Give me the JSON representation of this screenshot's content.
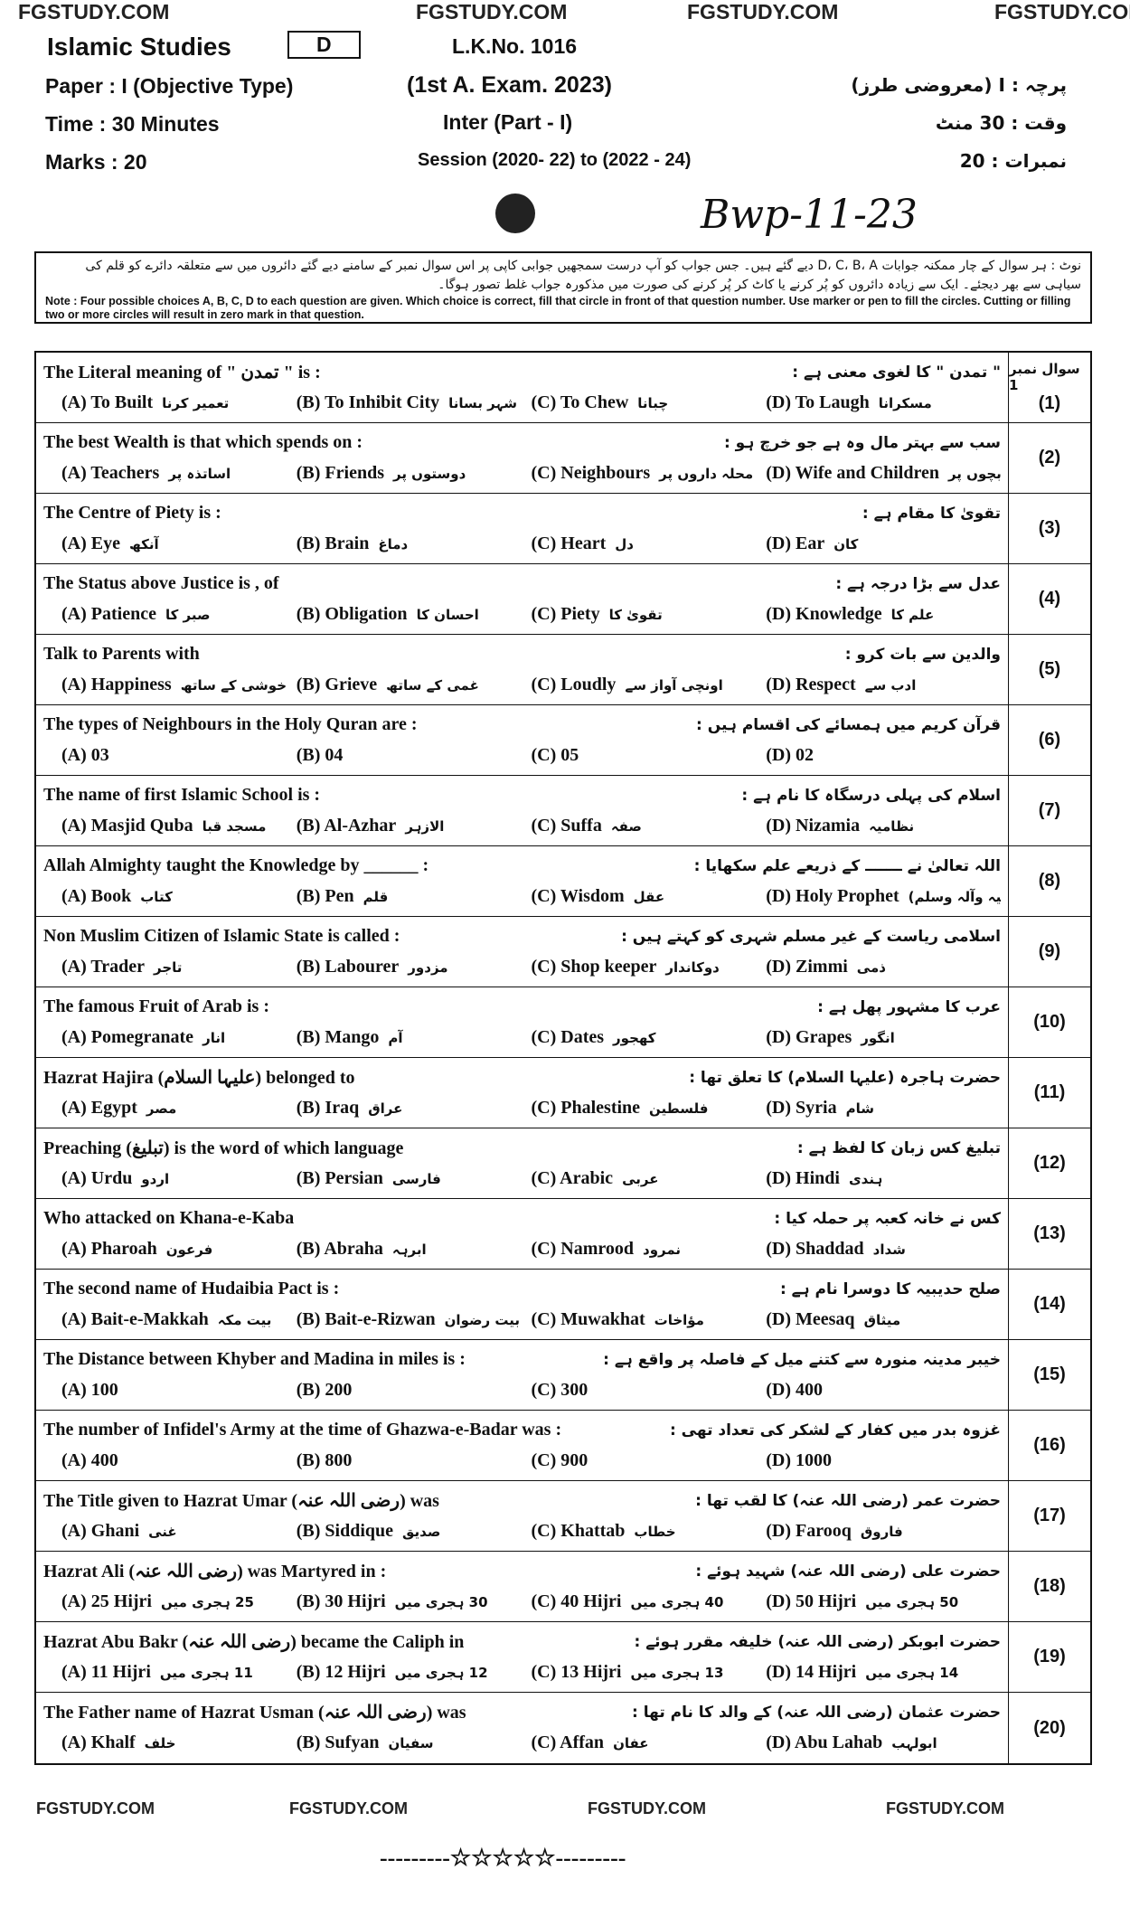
{
  "header": {
    "watermarks": [
      "FGSTUDY.COM",
      "FGSTUDY.COM",
      "FGSTUDY.COM",
      "FGSTUDY.COM"
    ],
    "subject": "Islamic Studies",
    "group": "D",
    "lk_no": "L.K.No. 1016",
    "paper": "Paper : I (Objective Type)",
    "exam": "(1st A. Exam. 2023)",
    "paper_urdu": "پرچہ : I (معروضی طرز)",
    "time": "Time : 30 Minutes",
    "inter": "Inter (Part - I)",
    "time_urdu": "وقت : 30 منٹ",
    "marks": "Marks : 20",
    "session": "Session (2020- 22) to (2022 - 24)",
    "marks_urdu": "نمبرات : 20",
    "handwritten": "Bwp-11-23"
  },
  "note": {
    "urdu": "نوٹ : ہر سوال کے چار ممکنہ جوابات D، C، B، A دیے گئے ہیں۔ جس جواب کو آپ درست سمجھیں جوابی کاپی پر اس سوال نمبر کے سامنے دیے گئے دائروں میں سے متعلقہ دائرے کو قلم کی سیاہی سے بھر دیجئے۔ ایک سے زیادہ دائروں کو پُر کرنے یا کاٹ کر پُر کرنے کی صورت میں مذکورہ جواب غلط تصور ہوگا۔",
    "english": "Note : Four possible choices A, B, C, D to each question are given. Which choice is correct, fill that circle in front of that question number. Use marker or pen to fill the circles. Cutting or filling two or more circles will result in zero mark in that question."
  },
  "table": {
    "header_label": "سوال نمبر 1",
    "questions": [
      {
        "number": "(1)",
        "english": "The Literal meaning of \" تمدن \" is :",
        "urdu": "\" تمدن \" کا لغوی معنی ہے :",
        "options": [
          {
            "letter": "(A)",
            "english": "To Built",
            "urdu": "تعمیر کرنا"
          },
          {
            "letter": "(B)",
            "english": "To Inhibit City",
            "urdu": "شہر بسانا"
          },
          {
            "letter": "(C)",
            "english": "To Chew",
            "urdu": "چبانا"
          },
          {
            "letter": "(D)",
            "english": "To Laugh",
            "urdu": "مسکرانا"
          }
        ]
      },
      {
        "number": "(2)",
        "english": "The best Wealth is that which spends on :",
        "urdu": "سب سے بہتر مال وہ ہے جو خرچ ہو :",
        "options": [
          {
            "letter": "(A)",
            "english": "Teachers",
            "urdu": "اساتذہ پر"
          },
          {
            "letter": "(B)",
            "english": "Friends",
            "urdu": "دوستوں پر"
          },
          {
            "letter": "(C)",
            "english": "Neighbours",
            "urdu": "محلہ داروں پر"
          },
          {
            "letter": "(D)",
            "english": "Wife and Children",
            "urdu": "بیوی اور بچوں پر"
          }
        ]
      },
      {
        "number": "(3)",
        "english": "The Centre of Piety is :",
        "urdu": "تقویٰ کا مقام ہے :",
        "options": [
          {
            "letter": "(A)",
            "english": "Eye",
            "urdu": "آنکھ"
          },
          {
            "letter": "(B)",
            "english": "Brain",
            "urdu": "دماغ"
          },
          {
            "letter": "(C)",
            "english": "Heart",
            "urdu": "دل"
          },
          {
            "letter": "(D)",
            "english": "Ear",
            "urdu": "کان"
          }
        ]
      },
      {
        "number": "(4)",
        "english": "The Status above Justice is , of",
        "urdu": "عدل سے بڑا درجہ ہے :",
        "options": [
          {
            "letter": "(A)",
            "english": "Patience",
            "urdu": "صبر کا"
          },
          {
            "letter": "(B)",
            "english": "Obligation",
            "urdu": "احسان کا"
          },
          {
            "letter": "(C)",
            "english": "Piety",
            "urdu": "تقویٰ کا"
          },
          {
            "letter": "(D)",
            "english": "Knowledge",
            "urdu": "علم کا"
          }
        ]
      },
      {
        "number": "(5)",
        "english": "Talk to Parents with",
        "urdu": "والدین سے بات کرو :",
        "options": [
          {
            "letter": "(A)",
            "english": "Happiness",
            "urdu": "خوشی کے ساتھ"
          },
          {
            "letter": "(B)",
            "english": "Grieve",
            "urdu": "غمی کے ساتھ"
          },
          {
            "letter": "(C)",
            "english": "Loudly",
            "urdu": "اونچی آواز سے"
          },
          {
            "letter": "(D)",
            "english": "Respect",
            "urdu": "ادب سے"
          }
        ]
      },
      {
        "number": "(6)",
        "english": "The types of Neighbours in the Holy Quran are :",
        "urdu": "قرآن کریم میں ہمسائے کی اقسام ہیں :",
        "options": [
          {
            "letter": "(A)",
            "english": "03"
          },
          {
            "letter": "(B)",
            "english": "04"
          },
          {
            "letter": "(C)",
            "english": "05"
          },
          {
            "letter": "(D)",
            "english": "02"
          }
        ]
      },
      {
        "number": "(7)",
        "english": "The name of first Islamic School is :",
        "urdu": "اسلام کی پہلی درسگاہ کا نام ہے :",
        "options": [
          {
            "letter": "(A)",
            "english": "Masjid Quba",
            "urdu": "مسجد قبا"
          },
          {
            "letter": "(B)",
            "english": "Al-Azhar",
            "urdu": "الازہر"
          },
          {
            "letter": "(C)",
            "english": "Suffa",
            "urdu": "صفہ"
          },
          {
            "letter": "(D)",
            "english": "Nizamia",
            "urdu": "نظامیہ"
          }
        ]
      },
      {
        "number": "(8)",
        "english": "Allah Almighty taught the Knowledge by ______ :",
        "urdu": "اللہ تعالیٰ نے ـــــــ کے ذریعے علم سکھایا :",
        "options": [
          {
            "letter": "(A)",
            "english": "Book",
            "urdu": "کتاب"
          },
          {
            "letter": "(B)",
            "english": "Pen",
            "urdu": "قلم"
          },
          {
            "letter": "(C)",
            "english": "Wisdom",
            "urdu": "عقل"
          },
          {
            "letter": "(D)",
            "english": "Holy Prophet",
            "urdu": "نبی کریم (صلی اللہ علیہ وآلہ وسلم)"
          }
        ]
      },
      {
        "number": "(9)",
        "english": "Non Muslim Citizen of Islamic State is called :",
        "urdu": "اسلامی ریاست کے غیر مسلم شہری کو کہتے ہیں :",
        "options": [
          {
            "letter": "(A)",
            "english": "Trader",
            "urdu": "تاجر"
          },
          {
            "letter": "(B)",
            "english": "Labourer",
            "urdu": "مزدور"
          },
          {
            "letter": "(C)",
            "english": "Shop keeper",
            "urdu": "دوکاندار"
          },
          {
            "letter": "(D)",
            "english": "Zimmi",
            "urdu": "ذمی"
          }
        ]
      },
      {
        "number": "(10)",
        "english": "The famous Fruit of Arab is :",
        "urdu": "عرب کا مشہور پھل ہے :",
        "options": [
          {
            "letter": "(A)",
            "english": "Pomegranate",
            "urdu": "انار"
          },
          {
            "letter": "(B)",
            "english": "Mango",
            "urdu": "آم"
          },
          {
            "letter": "(C)",
            "english": "Dates",
            "urdu": "کھجور"
          },
          {
            "letter": "(D)",
            "english": "Grapes",
            "urdu": "انگور"
          }
        ]
      },
      {
        "number": "(11)",
        "english": "Hazrat Hajira (علیہا السلام) belonged to",
        "urdu": "حضرت ہاجرہ (علیہا السلام) کا تعلق تھا :",
        "options": [
          {
            "letter": "(A)",
            "english": "Egypt",
            "urdu": "مصر"
          },
          {
            "letter": "(B)",
            "english": "Iraq",
            "urdu": "عراق"
          },
          {
            "letter": "(C)",
            "english": "Phalestine",
            "urdu": "فلسطین"
          },
          {
            "letter": "(D)",
            "english": "Syria",
            "urdu": "شام"
          }
        ]
      },
      {
        "number": "(12)",
        "english": "Preaching (تبلیغ) is the word of which language",
        "urdu": "تبلیغ کس زبان کا لفظ ہے :",
        "options": [
          {
            "letter": "(A)",
            "english": "Urdu",
            "urdu": "اردو"
          },
          {
            "letter": "(B)",
            "english": "Persian",
            "urdu": "فارسی"
          },
          {
            "letter": "(C)",
            "english": "Arabic",
            "urdu": "عربی"
          },
          {
            "letter": "(D)",
            "english": "Hindi",
            "urdu": "ہندی"
          }
        ]
      },
      {
        "number": "(13)",
        "english": "Who attacked on Khana-e-Kaba",
        "urdu": "کس نے خانہ کعبہ پر حملہ کیا :",
        "options": [
          {
            "letter": "(A)",
            "english": "Pharoah",
            "urdu": "فرعون"
          },
          {
            "letter": "(B)",
            "english": "Abraha",
            "urdu": "ابرہہ"
          },
          {
            "letter": "(C)",
            "english": "Namrood",
            "urdu": "نمرود"
          },
          {
            "letter": "(D)",
            "english": "Shaddad",
            "urdu": "شداد"
          }
        ]
      },
      {
        "number": "(14)",
        "english": "The second name of Hudaibia Pact is :",
        "urdu": "صلح حدیبیہ کا دوسرا نام ہے :",
        "options": [
          {
            "letter": "(A)",
            "english": "Bait-e-Makkah",
            "urdu": "بیت مکہ"
          },
          {
            "letter": "(B)",
            "english": "Bait-e-Rizwan",
            "urdu": "بیت رضوان"
          },
          {
            "letter": "(C)",
            "english": "Muwakhat",
            "urdu": "مؤاخات"
          },
          {
            "letter": "(D)",
            "english": "Meesaq",
            "urdu": "میثاق"
          }
        ]
      },
      {
        "number": "(15)",
        "english": "The Distance between Khyber and Madina in miles is :",
        "urdu": "خیبر مدینہ منورہ سے کتنے میل کے فاصلہ پر واقع ہے :",
        "options": [
          {
            "letter": "(A)",
            "english": "100"
          },
          {
            "letter": "(B)",
            "english": "200"
          },
          {
            "letter": "(C)",
            "english": "300"
          },
          {
            "letter": "(D)",
            "english": "400"
          }
        ]
      },
      {
        "number": "(16)",
        "english": "The number of Infidel's Army at the time of Ghazwa-e-Badar was :",
        "urdu": "غزوہ بدر میں کفار کے لشکر کی تعداد تھی :",
        "options": [
          {
            "letter": "(A)",
            "english": "400"
          },
          {
            "letter": "(B)",
            "english": "800"
          },
          {
            "letter": "(C)",
            "english": "900"
          },
          {
            "letter": "(D)",
            "english": "1000"
          }
        ]
      },
      {
        "number": "(17)",
        "english": "The Title given to Hazrat Umar (رضی اللہ عنہ) was",
        "urdu": "حضرت عمر (رضی اللہ عنہ) کا لقب تھا :",
        "options": [
          {
            "letter": "(A)",
            "english": "Ghani",
            "urdu": "غنی"
          },
          {
            "letter": "(B)",
            "english": "Siddique",
            "urdu": "صدیق"
          },
          {
            "letter": "(C)",
            "english": "Khattab",
            "urdu": "خطاب"
          },
          {
            "letter": "(D)",
            "english": "Farooq",
            "urdu": "فاروق"
          }
        ]
      },
      {
        "number": "(18)",
        "english": "Hazrat Ali (رضی اللہ عنہ) was Martyred in :",
        "urdu": "حضرت علی (رضی اللہ عنہ) شہید ہوئے :",
        "options": [
          {
            "letter": "(A)",
            "english": "25 Hijri",
            "urdu": "25 ہجری میں"
          },
          {
            "letter": "(B)",
            "english": "30 Hijri",
            "urdu": "30 ہجری میں"
          },
          {
            "letter": "(C)",
            "english": "40 Hijri",
            "urdu": "40 ہجری میں"
          },
          {
            "letter": "(D)",
            "english": "50 Hijri",
            "urdu": "50 ہجری میں"
          }
        ]
      },
      {
        "number": "(19)",
        "english": "Hazrat Abu Bakr (رضی اللہ عنہ) became the Caliph in",
        "urdu": "حضرت ابوبکر (رضی اللہ عنہ) خلیفہ مقرر ہوئے :",
        "options": [
          {
            "letter": "(A)",
            "english": "11 Hijri",
            "urdu": "11 ہجری میں"
          },
          {
            "letter": "(B)",
            "english": "12 Hijri",
            "urdu": "12 ہجری میں"
          },
          {
            "letter": "(C)",
            "english": "13 Hijri",
            "urdu": "13 ہجری میں"
          },
          {
            "letter": "(D)",
            "english": "14 Hijri",
            "urdu": "14 ہجری میں"
          }
        ]
      },
      {
        "number": "(20)",
        "english": "The Father name of Hazrat Usman (رضی اللہ عنہ) was",
        "urdu": "حضرت عثمان (رضی اللہ عنہ) کے والد کا نام تھا :",
        "options": [
          {
            "letter": "(A)",
            "english": "Khalf",
            "urdu": "خلف"
          },
          {
            "letter": "(B)",
            "english": "Sufyan",
            "urdu": "سفیان"
          },
          {
            "letter": "(C)",
            "english": "Affan",
            "urdu": "عفان"
          },
          {
            "letter": "(D)",
            "english": "Abu Lahab",
            "urdu": "ابولہب"
          }
        ]
      }
    ]
  },
  "footer": {
    "watermarks": [
      "FGSTUDY.COM",
      "FGSTUDY.COM",
      "FGSTUDY.COM",
      "FGSTUDY.COM"
    ],
    "end_mark": "---------☆☆☆☆☆---------"
  }
}
